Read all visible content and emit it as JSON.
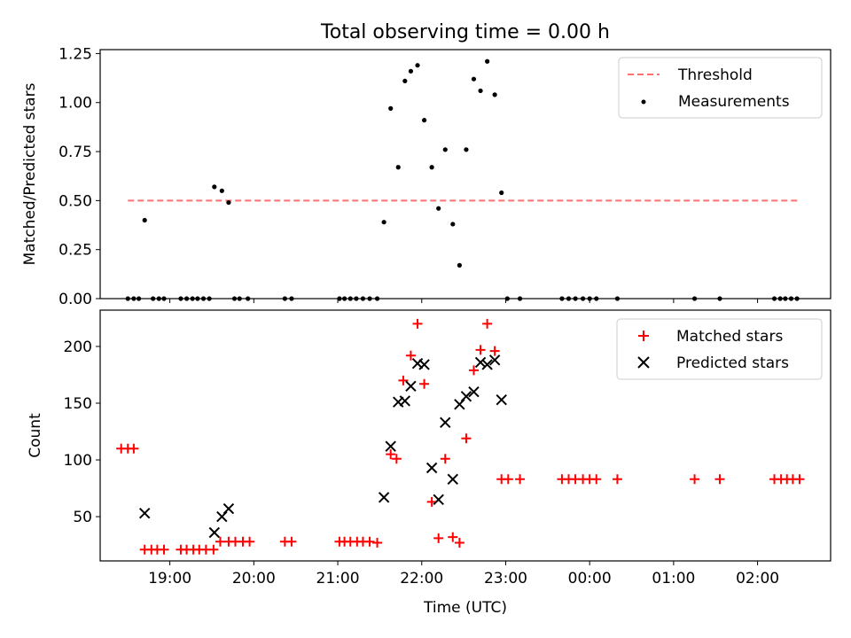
{
  "chart_data": [
    {
      "type": "scatter",
      "title": "Total observing time = 0.00 h",
      "ylabel": "Matched/Predicted stars",
      "xlabel": "",
      "xlim": [
        18.17,
        26.87
      ],
      "ylim": [
        0,
        1.27
      ],
      "yticks": [
        0,
        0.25,
        0.5,
        0.75,
        1.0,
        1.25
      ],
      "ytick_labels": [
        "0.00",
        "0.25",
        "0.50",
        "0.75",
        "1.00",
        "1.25"
      ],
      "xticks": [
        19,
        20,
        21,
        22,
        23,
        24,
        25,
        26
      ],
      "xtick_labels": [],
      "legend": {
        "position": "top-right"
      },
      "threshold": {
        "name": "Threshold",
        "value": 0.5,
        "x": [
          18.5,
          26.5
        ],
        "color": "#ff7070",
        "style": "dashed"
      },
      "series": [
        {
          "name": "Measurements",
          "color": "#000000",
          "marker": "dot",
          "points": [
            [
              18.5,
              0
            ],
            [
              18.57,
              0
            ],
            [
              18.63,
              0
            ],
            [
              18.7,
              0.4
            ],
            [
              18.8,
              0
            ],
            [
              18.87,
              0
            ],
            [
              18.93,
              0
            ],
            [
              19.13,
              0
            ],
            [
              19.2,
              0
            ],
            [
              19.27,
              0
            ],
            [
              19.33,
              0
            ],
            [
              19.4,
              0
            ],
            [
              19.47,
              0
            ],
            [
              19.53,
              0.57
            ],
            [
              19.62,
              0.55
            ],
            [
              19.7,
              0.49
            ],
            [
              19.77,
              0
            ],
            [
              19.83,
              0
            ],
            [
              19.93,
              0
            ],
            [
              20.37,
              0
            ],
            [
              20.45,
              0
            ],
            [
              21.02,
              0
            ],
            [
              21.08,
              0
            ],
            [
              21.15,
              0
            ],
            [
              21.22,
              0
            ],
            [
              21.3,
              0
            ],
            [
              21.38,
              0
            ],
            [
              21.47,
              0
            ],
            [
              21.55,
              0.39
            ],
            [
              21.63,
              0.97
            ],
            [
              21.72,
              0.67
            ],
            [
              21.8,
              1.11
            ],
            [
              21.87,
              1.16
            ],
            [
              21.95,
              1.19
            ],
            [
              22.03,
              0.91
            ],
            [
              22.12,
              0.67
            ],
            [
              22.2,
              0.46
            ],
            [
              22.28,
              0.76
            ],
            [
              22.37,
              0.38
            ],
            [
              22.45,
              0.17
            ],
            [
              22.53,
              0.76
            ],
            [
              22.62,
              1.12
            ],
            [
              22.7,
              1.06
            ],
            [
              22.78,
              1.21
            ],
            [
              22.87,
              1.04
            ],
            [
              22.95,
              0.54
            ],
            [
              23.02,
              0
            ],
            [
              23.17,
              0
            ],
            [
              23.67,
              0
            ],
            [
              23.75,
              0
            ],
            [
              23.83,
              0
            ],
            [
              23.92,
              0
            ],
            [
              24.0,
              0
            ],
            [
              24.08,
              0
            ],
            [
              24.33,
              0
            ],
            [
              25.25,
              0
            ],
            [
              25.55,
              0
            ],
            [
              26.2,
              0
            ],
            [
              26.27,
              0
            ],
            [
              26.33,
              0
            ],
            [
              26.4,
              0
            ],
            [
              26.47,
              0
            ]
          ]
        }
      ]
    },
    {
      "type": "scatter",
      "title": "",
      "ylabel": "Count",
      "xlabel": "Time (UTC)",
      "xlim": [
        18.17,
        26.87
      ],
      "ylim": [
        11,
        232
      ],
      "yticks": [
        50,
        100,
        150,
        200
      ],
      "ytick_labels": [
        "50",
        "100",
        "150",
        "200"
      ],
      "xticks": [
        19,
        20,
        21,
        22,
        23,
        24,
        25,
        26
      ],
      "xtick_labels": [
        "19:00",
        "20:00",
        "21:00",
        "22:00",
        "23:00",
        "00:00",
        "01:00",
        "02:00"
      ],
      "legend": {
        "position": "top-right"
      },
      "series": [
        {
          "name": "Matched stars",
          "color": "#ff0000",
          "marker": "plus",
          "points": [
            [
              18.42,
              110
            ],
            [
              18.5,
              110
            ],
            [
              18.57,
              110
            ],
            [
              18.7,
              21
            ],
            [
              18.78,
              21
            ],
            [
              18.85,
              21
            ],
            [
              18.93,
              21
            ],
            [
              19.13,
              21
            ],
            [
              19.2,
              21
            ],
            [
              19.28,
              21
            ],
            [
              19.35,
              21
            ],
            [
              19.43,
              21
            ],
            [
              19.52,
              21
            ],
            [
              19.6,
              28
            ],
            [
              19.7,
              28
            ],
            [
              19.78,
              28
            ],
            [
              19.87,
              28
            ],
            [
              19.95,
              28
            ],
            [
              20.37,
              28
            ],
            [
              20.45,
              28
            ],
            [
              21.02,
              28
            ],
            [
              21.08,
              28
            ],
            [
              21.15,
              28
            ],
            [
              21.23,
              28
            ],
            [
              21.3,
              28
            ],
            [
              21.38,
              28
            ],
            [
              21.47,
              27
            ],
            [
              21.63,
              105
            ],
            [
              21.7,
              101
            ],
            [
              21.78,
              170
            ],
            [
              21.87,
              192
            ],
            [
              21.95,
              220
            ],
            [
              22.03,
              167
            ],
            [
              22.12,
              63
            ],
            [
              22.2,
              31
            ],
            [
              22.28,
              101
            ],
            [
              22.37,
              32
            ],
            [
              22.45,
              27
            ],
            [
              22.53,
              119
            ],
            [
              22.62,
              179
            ],
            [
              22.7,
              197
            ],
            [
              22.78,
              220
            ],
            [
              22.87,
              196
            ],
            [
              22.95,
              83
            ],
            [
              23.03,
              83
            ],
            [
              23.17,
              83
            ],
            [
              23.67,
              83
            ],
            [
              23.75,
              83
            ],
            [
              23.83,
              83
            ],
            [
              23.92,
              83
            ],
            [
              24.0,
              83
            ],
            [
              24.08,
              83
            ],
            [
              24.33,
              83
            ],
            [
              25.25,
              83
            ],
            [
              25.55,
              83
            ],
            [
              26.2,
              83
            ],
            [
              26.28,
              83
            ],
            [
              26.35,
              83
            ],
            [
              26.42,
              83
            ],
            [
              26.5,
              83
            ]
          ]
        },
        {
          "name": "Predicted stars",
          "color": "#000000",
          "marker": "x",
          "points": [
            [
              18.7,
              53
            ],
            [
              19.53,
              36
            ],
            [
              19.62,
              50
            ],
            [
              19.7,
              57
            ],
            [
              21.55,
              67
            ],
            [
              21.63,
              112
            ],
            [
              21.72,
              151
            ],
            [
              21.8,
              152
            ],
            [
              21.87,
              165
            ],
            [
              21.95,
              185
            ],
            [
              22.03,
              184
            ],
            [
              22.12,
              93
            ],
            [
              22.2,
              65
            ],
            [
              22.28,
              133
            ],
            [
              22.37,
              83
            ],
            [
              22.45,
              149
            ],
            [
              22.53,
              156
            ],
            [
              22.62,
              160
            ],
            [
              22.7,
              186
            ],
            [
              22.78,
              184
            ],
            [
              22.87,
              188
            ],
            [
              22.95,
              153
            ]
          ]
        }
      ]
    }
  ]
}
